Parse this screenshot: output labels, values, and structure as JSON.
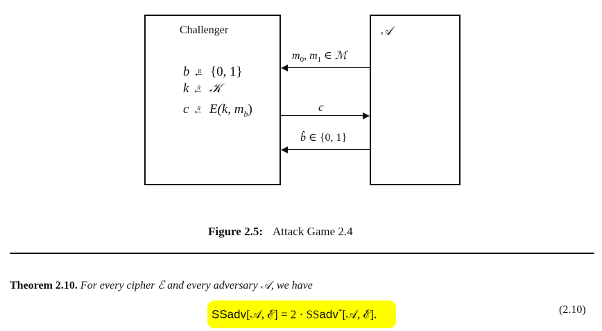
{
  "diagram": {
    "challenger_label": "Challenger",
    "adversary_label": "𝒜",
    "challenger_lines": [
      {
        "var": "b",
        "set": "{0, 1}"
      },
      {
        "var": "k",
        "set": "𝒦"
      },
      {
        "var": "c",
        "set": "E(k, m",
        "sub": "b",
        "close": ")"
      }
    ],
    "random_marker": "R",
    "msg1": {
      "a": "m",
      "a_sub": "0",
      "sep": ", ",
      "b": "m",
      "b_sub": "1",
      "rel": " ∈ ",
      "set": "ℳ"
    },
    "msg2": "c",
    "msg3": {
      "var": "b̂",
      "rel": " ∈ ",
      "set": "{0, 1}"
    }
  },
  "caption": {
    "label": "Figure 2.5:",
    "text": "Attack Game 2.4"
  },
  "theorem": {
    "label": "Theorem 2.10.",
    "text_pre": "For every cipher ",
    "cipher": "ℰ",
    "text_mid": " and every adversary ",
    "adv": "𝒜",
    "text_post": ", we have",
    "equation": {
      "lhs_fn": "SSadv",
      "lhs_args": "[𝒜, ℰ]",
      "eq": " = 2 · ",
      "rhs_fn_serif": "SS",
      "rhs_fn_sans": "adv",
      "rhs_star": "*",
      "rhs_args": "[𝒜, ℰ]",
      "end": "."
    },
    "eq_number": "(2.10)"
  },
  "colors": {
    "highlight": "#ffff00",
    "ink": "#111111"
  }
}
